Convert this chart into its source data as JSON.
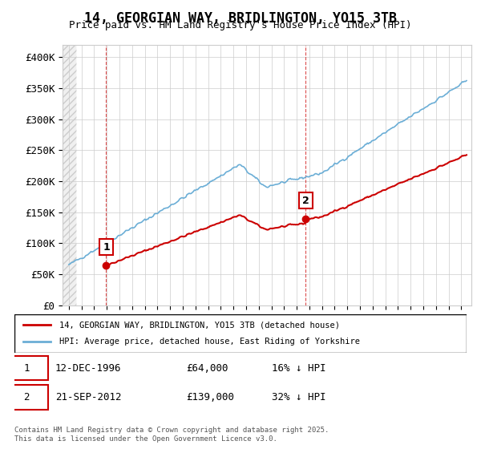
{
  "title": "14, GEORGIAN WAY, BRIDLINGTON, YO15 3TB",
  "subtitle": "Price paid vs. HM Land Registry's House Price Index (HPI)",
  "ylabel": "",
  "ylim": [
    0,
    420000
  ],
  "yticks": [
    0,
    50000,
    100000,
    150000,
    200000,
    250000,
    300000,
    350000,
    400000
  ],
  "ytick_labels": [
    "£0",
    "£50K",
    "£100K",
    "£150K",
    "£200K",
    "£250K",
    "£300K",
    "£350K",
    "£400K"
  ],
  "hpi_color": "#6baed6",
  "price_color": "#cc0000",
  "sale1_date": 1996.95,
  "sale1_price": 64000,
  "sale1_label": "1",
  "sale2_date": 2012.72,
  "sale2_price": 139000,
  "sale2_label": "2",
  "legend_line1": "14, GEORGIAN WAY, BRIDLINGTON, YO15 3TB (detached house)",
  "legend_line2": "HPI: Average price, detached house, East Riding of Yorkshire",
  "note1_num": "1",
  "note1_date": "12-DEC-1996",
  "note1_price": "£64,000",
  "note1_hpi": "16% ↓ HPI",
  "note2_num": "2",
  "note2_date": "21-SEP-2012",
  "note2_price": "£139,000",
  "note2_hpi": "32% ↓ HPI",
  "copyright": "Contains HM Land Registry data © Crown copyright and database right 2025.\nThis data is licensed under the Open Government Licence v3.0.",
  "bg_color": "#ffffff",
  "grid_color": "#cccccc",
  "hatch_color": "#dddddd"
}
